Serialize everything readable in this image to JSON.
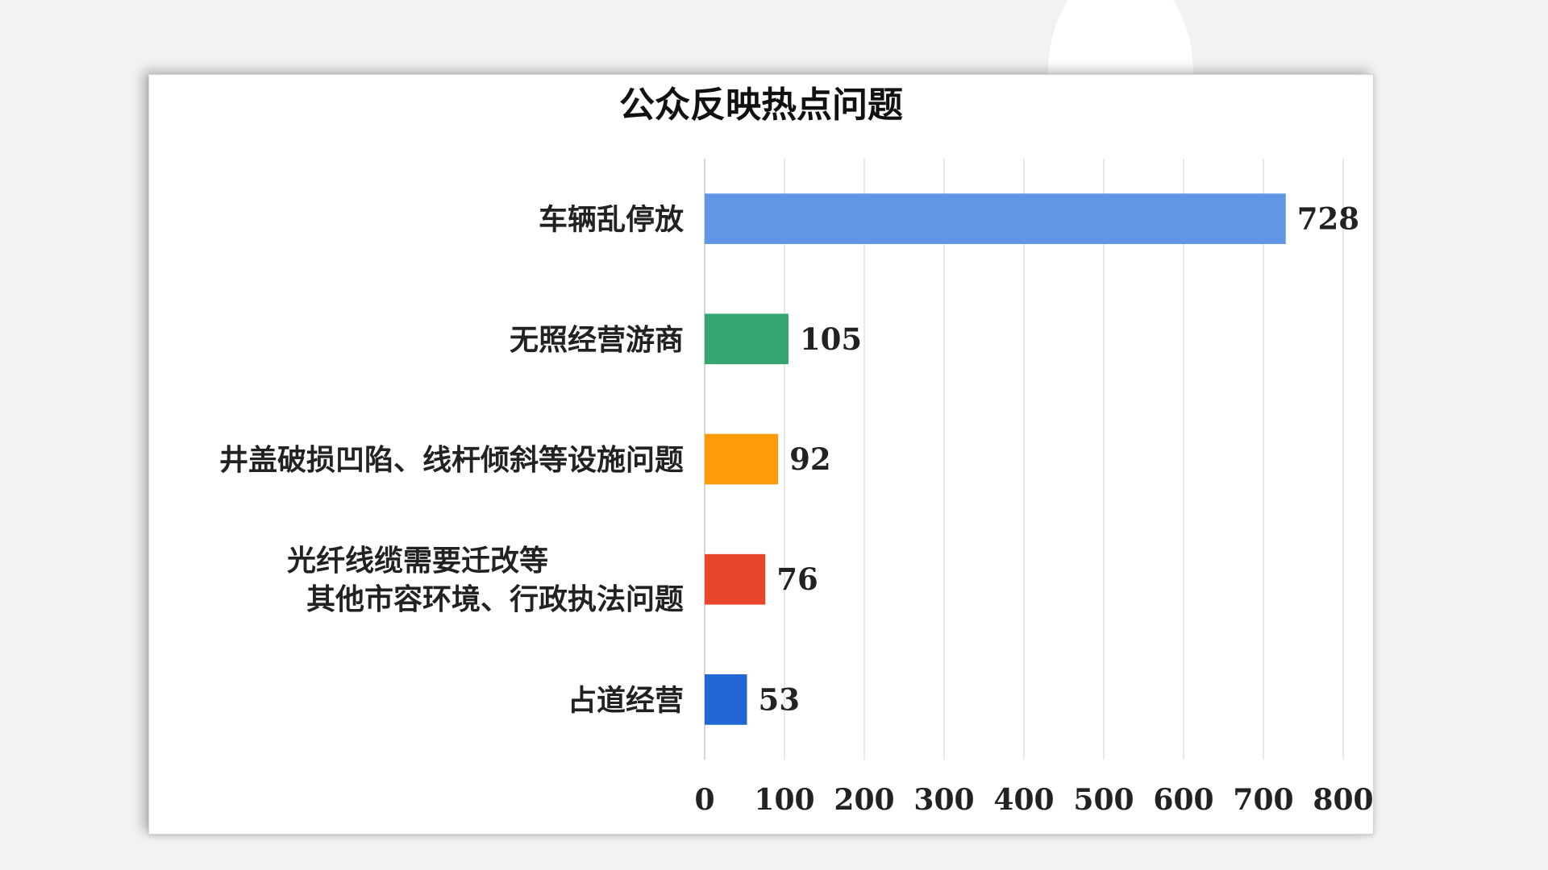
{
  "chart_data": {
    "type": "bar",
    "orientation": "horizontal",
    "title": "公众反映热点问题",
    "categories": [
      [
        "车辆乱停放"
      ],
      [
        "无照经营游商"
      ],
      [
        "井盖破损凹陷、线杆倾斜等设施问题"
      ],
      [
        "光纤线缆需要迁改等",
        "其他市容环境、行政执法问题"
      ],
      [
        "占道经营"
      ]
    ],
    "values": [
      728,
      105,
      92,
      76,
      53
    ],
    "colors": [
      "#6096e4",
      "#34a56e",
      "#ff9a0a",
      "#e8462a",
      "#2166d2"
    ],
    "xlim": [
      0,
      800
    ],
    "xticks": [
      0,
      100,
      200,
      300,
      400,
      500,
      600,
      700,
      800
    ],
    "grid": true,
    "data_labels": true
  }
}
